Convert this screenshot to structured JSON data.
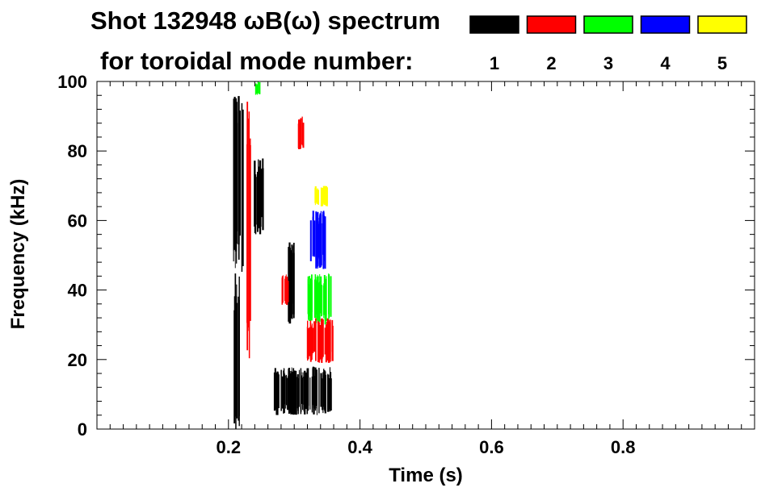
{
  "chart_data": {
    "type": "scatter",
    "title": "Shot 132948 ωB(ω) spectrum",
    "subtitle": "for toroidal mode number:",
    "xlabel": "Time (s)",
    "ylabel": "Frequency (kHz)",
    "xlim": [
      0.0,
      1.0
    ],
    "ylim": [
      0,
      100
    ],
    "x_ticks": [
      0.2,
      0.4,
      0.6,
      0.8
    ],
    "x_tick_labels": [
      "0.2",
      "0.4",
      "0.6",
      "0.8"
    ],
    "y_ticks": [
      0,
      20,
      40,
      60,
      80,
      100
    ],
    "y_tick_labels": [
      "0",
      "20",
      "40",
      "60",
      "80",
      "100"
    ],
    "legend_position": "top-right",
    "series": [
      {
        "name": "1",
        "color": "#000000",
        "regions": [
          {
            "t": [
              0.207,
              0.222
            ],
            "f": [
              45,
              98
            ]
          },
          {
            "t": [
              0.207,
              0.216
            ],
            "f": [
              0,
              45
            ]
          },
          {
            "t": [
              0.237,
              0.252
            ],
            "f": [
              56,
              78
            ]
          },
          {
            "t": [
              0.268,
              0.357
            ],
            "f": [
              4,
              18
            ]
          },
          {
            "t": [
              0.29,
              0.3
            ],
            "f": [
              30,
              55
            ]
          }
        ]
      },
      {
        "name": "2",
        "color": "#ff0000",
        "regions": [
          {
            "t": [
              0.318,
              0.358
            ],
            "f": [
              19,
              32
            ]
          },
          {
            "t": [
              0.226,
              0.234
            ],
            "f": [
              20,
              95
            ]
          },
          {
            "t": [
              0.305,
              0.315
            ],
            "f": [
              80,
              90
            ]
          },
          {
            "t": [
              0.28,
              0.29
            ],
            "f": [
              35,
              45
            ]
          }
        ]
      },
      {
        "name": "3",
        "color": "#00ff00",
        "regions": [
          {
            "t": [
              0.32,
              0.355
            ],
            "f": [
              30,
              45
            ]
          },
          {
            "t": [
              0.24,
              0.247
            ],
            "f": [
              96,
              100
            ]
          }
        ]
      },
      {
        "name": "4",
        "color": "#0000ff",
        "regions": [
          {
            "t": [
              0.323,
              0.35
            ],
            "f": [
              46,
              63
            ]
          }
        ]
      },
      {
        "name": "5",
        "color": "#ffff00",
        "regions": [
          {
            "t": [
              0.33,
              0.35
            ],
            "f": [
              64,
              70
            ]
          }
        ]
      }
    ]
  }
}
